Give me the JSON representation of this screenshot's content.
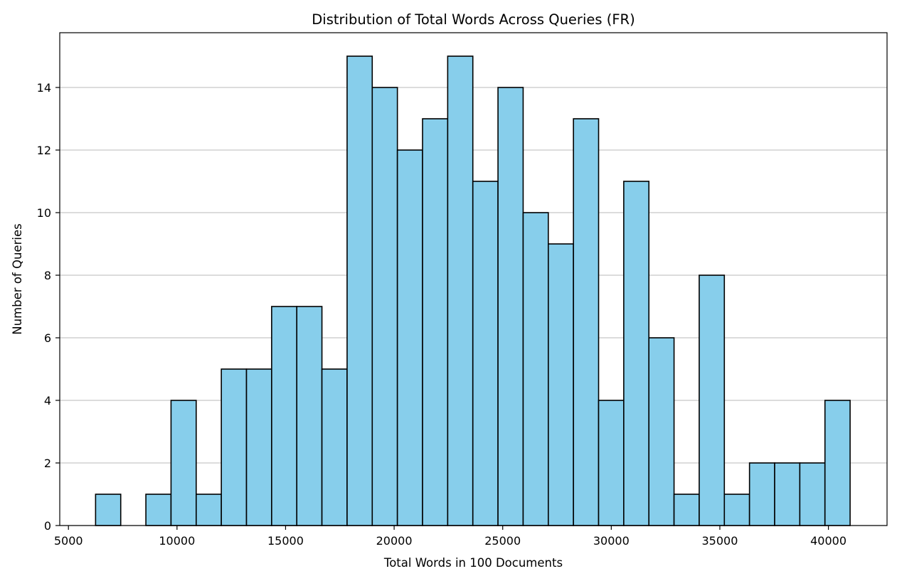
{
  "chart_data": {
    "type": "bar",
    "title": "Distribution of Total Words Across Queries (FR)",
    "xlabel": "Total Words in 100 Documents",
    "ylabel": "Number of Queries",
    "xlim": [
      4600,
      42700
    ],
    "ylim": [
      0,
      15.75
    ],
    "xticks": [
      5000,
      10000,
      15000,
      20000,
      25000,
      30000,
      35000,
      40000
    ],
    "yticks": [
      0,
      2,
      4,
      6,
      8,
      10,
      12,
      14
    ],
    "grid": "y",
    "bin_start": 6250,
    "bin_width": 1158.3,
    "values": [
      1,
      0,
      1,
      4,
      1,
      5,
      5,
      7,
      7,
      5,
      15,
      14,
      12,
      13,
      15,
      11,
      14,
      10,
      9,
      13,
      4,
      11,
      6,
      1,
      8,
      1,
      2,
      2,
      2,
      4
    ],
    "bar_color": "#87ceeb",
    "edge_color": "#000000"
  }
}
